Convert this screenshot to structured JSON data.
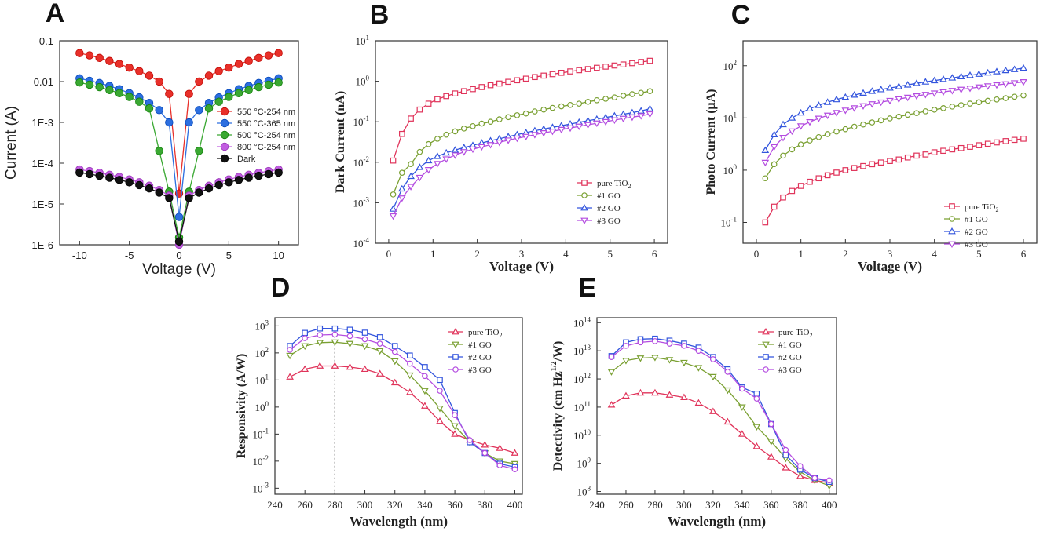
{
  "chart_data": [
    {
      "panel": "A",
      "type": "line",
      "xlabel": "Voltage (V)",
      "ylabel": "Current (A)",
      "xlim": [
        -12,
        12
      ],
      "ylim": [
        1e-06,
        0.1
      ],
      "yscale": "log",
      "xticks": [
        -10,
        -5,
        0,
        5,
        10
      ],
      "xtick_labels": [
        "-10",
        "-5",
        "0",
        "5",
        "10"
      ],
      "yticks": [
        1e-06,
        1e-05,
        0.0001,
        0.001,
        0.01,
        0.1
      ],
      "ytick_labels": [
        "1E-6",
        "1E-5",
        "1E-4",
        "1E-3",
        "0.01",
        "0.1"
      ],
      "legend_position": "center-right",
      "x": [
        -10,
        -9,
        -8,
        -7,
        -6,
        -5,
        -4,
        -3,
        -2,
        -1,
        0,
        1,
        2,
        3,
        4,
        5,
        6,
        7,
        8,
        9,
        10
      ],
      "series": [
        {
          "name": "550 °C-254 nm",
          "color": "#e8302a",
          "marker": "circle",
          "values": [
            0.05,
            0.044,
            0.038,
            0.032,
            0.027,
            0.022,
            0.018,
            0.014,
            0.01,
            0.005,
            1.8e-05,
            0.005,
            0.01,
            0.014,
            0.018,
            0.022,
            0.027,
            0.032,
            0.038,
            0.044,
            0.05
          ]
        },
        {
          "name": "550 °C-365 nm",
          "color": "#2d6fe0",
          "marker": "circle",
          "values": [
            0.012,
            0.0105,
            0.0092,
            0.0078,
            0.0065,
            0.0052,
            0.0041,
            0.003,
            0.002,
            0.001,
            4.8e-06,
            0.001,
            0.002,
            0.003,
            0.0041,
            0.0052,
            0.0065,
            0.0078,
            0.0092,
            0.0105,
            0.012
          ]
        },
        {
          "name": "500 °C-254 nm",
          "color": "#3aa832",
          "marker": "circle",
          "values": [
            0.0095,
            0.0084,
            0.0073,
            0.0062,
            0.0052,
            0.0042,
            0.0032,
            0.0022,
            0.0002,
            2e-05,
            1.5e-06,
            2e-05,
            0.0002,
            0.0022,
            0.0032,
            0.0042,
            0.0052,
            0.0062,
            0.0073,
            0.0084,
            0.0095
          ]
        },
        {
          "name": "800 °C-254 nm",
          "color": "#c15de0",
          "marker": "circle",
          "values": [
            7e-05,
            6.4e-05,
            5.8e-05,
            5.2e-05,
            4.6e-05,
            4e-05,
            3.4e-05,
            2.8e-05,
            2.2e-05,
            1.6e-05,
            1e-06,
            1.6e-05,
            2.2e-05,
            2.8e-05,
            3.4e-05,
            4e-05,
            4.6e-05,
            5.2e-05,
            5.8e-05,
            6.4e-05,
            7e-05
          ]
        },
        {
          "name": "Dark",
          "color": "#111111",
          "marker": "circle",
          "values": [
            5.9e-05,
            5.4e-05,
            4.9e-05,
            4.4e-05,
            3.9e-05,
            3.4e-05,
            2.9e-05,
            2.4e-05,
            1.9e-05,
            1.4e-05,
            1.2e-06,
            1.4e-05,
            1.9e-05,
            2.4e-05,
            2.9e-05,
            3.4e-05,
            3.9e-05,
            4.4e-05,
            4.9e-05,
            5.4e-05,
            5.9e-05
          ]
        }
      ]
    },
    {
      "panel": "B",
      "type": "line",
      "xlabel": "Voltage (V)",
      "ylabel": "Dark Current (nA)",
      "xlim": [
        -0.3,
        6.3
      ],
      "ylim": [
        0.0001,
        10
      ],
      "yscale": "log",
      "xticks": [
        0,
        1,
        2,
        3,
        4,
        5,
        6
      ],
      "xtick_labels": [
        "0",
        "1",
        "2",
        "3",
        "4",
        "5",
        "6"
      ],
      "yticks": [
        0.0001,
        0.001,
        0.01,
        0.1,
        1,
        10
      ],
      "ytick_labels": [
        "10",
        "10",
        "10",
        "10",
        "10",
        "10"
      ],
      "ytick_exponents": [
        "-4",
        "-3",
        "-2",
        "-1",
        "0",
        "1"
      ],
      "legend_position": "bottom-right",
      "x": [
        0.1,
        0.3,
        0.5,
        0.7,
        0.9,
        1.1,
        1.3,
        1.5,
        1.7,
        1.9,
        2.1,
        2.3,
        2.5,
        2.7,
        2.9,
        3.1,
        3.3,
        3.5,
        3.7,
        3.9,
        4.1,
        4.3,
        4.5,
        4.7,
        4.9,
        5.1,
        5.3,
        5.5,
        5.7,
        5.9
      ],
      "series": [
        {
          "name": "pure TiO",
          "name_sub": "2",
          "color": "#e0335a",
          "marker": "square",
          "values": [
            0.011,
            0.05,
            0.12,
            0.2,
            0.28,
            0.36,
            0.43,
            0.5,
            0.57,
            0.64,
            0.72,
            0.8,
            0.88,
            0.97,
            1.06,
            1.16,
            1.27,
            1.38,
            1.5,
            1.62,
            1.75,
            1.88,
            2.0,
            2.15,
            2.3,
            2.45,
            2.6,
            2.8,
            3.0,
            3.2
          ]
        },
        {
          "name": "#1 GO",
          "color": "#7aa032",
          "marker": "circle",
          "values": [
            0.0016,
            0.0055,
            0.009,
            0.018,
            0.028,
            0.038,
            0.048,
            0.058,
            0.068,
            0.078,
            0.09,
            0.1,
            0.115,
            0.13,
            0.145,
            0.16,
            0.18,
            0.2,
            0.22,
            0.24,
            0.26,
            0.28,
            0.31,
            0.34,
            0.37,
            0.4,
            0.44,
            0.48,
            0.52,
            0.57
          ]
        },
        {
          "name": "#2 GO",
          "color": "#3355dd",
          "marker": "triangle-up",
          "values": [
            0.0007,
            0.0022,
            0.0045,
            0.0075,
            0.011,
            0.014,
            0.017,
            0.02,
            0.023,
            0.026,
            0.03,
            0.034,
            0.038,
            0.043,
            0.048,
            0.054,
            0.06,
            0.066,
            0.073,
            0.08,
            0.088,
            0.097,
            0.106,
            0.116,
            0.127,
            0.14,
            0.153,
            0.168,
            0.185,
            0.21
          ]
        },
        {
          "name": "#3 GO",
          "color": "#b44ce0",
          "marker": "triangle-down",
          "values": [
            0.00047,
            0.0013,
            0.0025,
            0.0042,
            0.0065,
            0.0092,
            0.012,
            0.015,
            0.018,
            0.021,
            0.024,
            0.027,
            0.031,
            0.035,
            0.039,
            0.043,
            0.048,
            0.053,
            0.058,
            0.064,
            0.07,
            0.077,
            0.084,
            0.092,
            0.1,
            0.11,
            0.12,
            0.13,
            0.14,
            0.155
          ]
        }
      ]
    },
    {
      "panel": "C",
      "type": "line",
      "xlabel": "Voltage (V)",
      "ylabel": "Photo Current (μA)",
      "xlim": [
        -0.3,
        6.3
      ],
      "ylim": [
        0.04,
        300
      ],
      "yscale": "log",
      "xticks": [
        0,
        1,
        2,
        3,
        4,
        5,
        6
      ],
      "xtick_labels": [
        "0",
        "1",
        "2",
        "3",
        "4",
        "5",
        "6"
      ],
      "yticks": [
        0.1,
        1,
        10,
        100
      ],
      "ytick_labels": [
        "10",
        "10",
        "10",
        "10"
      ],
      "ytick_exponents": [
        "-1",
        "0",
        "1",
        "2"
      ],
      "legend_position": "bottom-right",
      "x": [
        0.2,
        0.4,
        0.6,
        0.8,
        1.0,
        1.2,
        1.4,
        1.6,
        1.8,
        2.0,
        2.2,
        2.4,
        2.6,
        2.8,
        3.0,
        3.2,
        3.4,
        3.6,
        3.8,
        4.0,
        4.2,
        4.4,
        4.6,
        4.8,
        5.0,
        5.2,
        5.4,
        5.6,
        5.8,
        6.0
      ],
      "series": [
        {
          "name": "pure TiO",
          "name_sub": "2",
          "color": "#e0335a",
          "marker": "square",
          "values": [
            0.1,
            0.2,
            0.3,
            0.4,
            0.5,
            0.6,
            0.7,
            0.8,
            0.9,
            1.0,
            1.1,
            1.2,
            1.3,
            1.4,
            1.5,
            1.6,
            1.75,
            1.9,
            2.0,
            2.2,
            2.35,
            2.5,
            2.65,
            2.8,
            3.0,
            3.2,
            3.4,
            3.6,
            3.8,
            4.0
          ]
        },
        {
          "name": "#1 GO",
          "color": "#7aa032",
          "marker": "circle",
          "values": [
            0.7,
            1.3,
            1.9,
            2.5,
            3.1,
            3.7,
            4.3,
            4.9,
            5.5,
            6.1,
            6.8,
            7.5,
            8.2,
            9.0,
            9.8,
            10.6,
            11.5,
            12.4,
            13.4,
            14.4,
            15.4,
            16.5,
            17.6,
            18.8,
            20.0,
            21.3,
            22.6,
            24.0,
            25.5,
            27.0
          ]
        },
        {
          "name": "#2 GO",
          "color": "#3355dd",
          "marker": "triangle-up",
          "values": [
            2.4,
            4.8,
            7.5,
            10.0,
            12.5,
            15.0,
            17.5,
            20.0,
            22.5,
            25.0,
            27.5,
            30.0,
            32.5,
            35.0,
            37.5,
            40.0,
            43.0,
            46.0,
            49.0,
            52.0,
            55.0,
            58.5,
            62.0,
            65.5,
            69.0,
            73.0,
            77.0,
            81.0,
            85.0,
            90.0
          ]
        },
        {
          "name": "#3 GO",
          "color": "#b44ce0",
          "marker": "triangle-down",
          "values": [
            1.4,
            2.8,
            4.2,
            5.6,
            7.0,
            8.4,
            9.8,
            11.2,
            12.6,
            14.0,
            15.5,
            17.0,
            18.5,
            20.0,
            21.5,
            23.0,
            24.7,
            26.4,
            28.1,
            29.8,
            31.5,
            33.3,
            35.1,
            37.0,
            38.9,
            40.8,
            42.8,
            44.8,
            46.8,
            49.0
          ]
        }
      ]
    },
    {
      "panel": "D",
      "type": "line",
      "xlabel": "Wavelength (nm)",
      "ylabel": "Responsivity (A/W)",
      "xlim": [
        240,
        405
      ],
      "ylim": [
        0.0006,
        2000
      ],
      "yscale": "log",
      "xticks": [
        240,
        260,
        280,
        300,
        320,
        340,
        360,
        380,
        400
      ],
      "xtick_labels": [
        "240",
        "260",
        "280",
        "300",
        "320",
        "340",
        "360",
        "380",
        "400"
      ],
      "yticks": [
        0.001,
        0.01,
        0.1,
        1,
        10,
        100,
        1000
      ],
      "ytick_labels": [
        "10",
        "10",
        "10",
        "10",
        "10",
        "10",
        "10"
      ],
      "ytick_exponents": [
        "-3",
        "-2",
        "-1",
        "0",
        "1",
        "2",
        "3"
      ],
      "reference_line_x": 280,
      "legend_position": "top-right",
      "x": [
        250,
        260,
        270,
        280,
        290,
        300,
        310,
        320,
        330,
        340,
        350,
        360,
        370,
        380,
        390,
        400
      ],
      "series": [
        {
          "name": "pure TiO",
          "name_sub": "2",
          "color": "#e0335a",
          "marker": "triangle-up",
          "values": [
            13,
            25,
            33,
            33,
            30,
            25,
            17,
            8,
            3.5,
            1.1,
            0.3,
            0.1,
            0.06,
            0.04,
            0.03,
            0.02
          ]
        },
        {
          "name": "#1 GO",
          "color": "#7aa032",
          "marker": "triangle-down",
          "values": [
            80,
            180,
            240,
            250,
            220,
            180,
            120,
            50,
            15,
            4,
            0.9,
            0.2,
            0.05,
            0.02,
            0.01,
            0.008
          ]
        },
        {
          "name": "#2 GO",
          "color": "#3355dd",
          "marker": "square",
          "values": [
            180,
            550,
            800,
            800,
            720,
            560,
            380,
            180,
            80,
            30,
            10,
            0.6,
            0.05,
            0.02,
            0.008,
            0.006
          ]
        },
        {
          "name": "#3 GO",
          "color": "#b44ce0",
          "marker": "circle",
          "values": [
            130,
            350,
            460,
            480,
            420,
            320,
            220,
            110,
            40,
            14,
            4,
            0.5,
            0.06,
            0.02,
            0.007,
            0.005
          ]
        }
      ]
    },
    {
      "panel": "E",
      "type": "line",
      "xlabel": "Wavelength (nm)",
      "ylabel": "Detectivity (cm Hz",
      "ylabel_sup": "1/2",
      "ylabel_end": "/W)",
      "xlim": [
        240,
        405
      ],
      "ylim": [
        80000000.0,
        150000000000000.0
      ],
      "yscale": "log",
      "xticks": [
        240,
        260,
        280,
        300,
        320,
        340,
        360,
        380,
        400
      ],
      "xtick_labels": [
        "240",
        "260",
        "280",
        "300",
        "320",
        "340",
        "360",
        "380",
        "400"
      ],
      "yticks": [
        100000000.0,
        1000000000.0,
        10000000000.0,
        100000000000.0,
        1000000000000.0,
        10000000000000.0,
        100000000000000.0
      ],
      "ytick_labels": [
        "10",
        "10",
        "10",
        "10",
        "10",
        "10",
        "10"
      ],
      "ytick_exponents": [
        "8",
        "9",
        "10",
        "11",
        "12",
        "13",
        "14"
      ],
      "legend_position": "top-right",
      "x": [
        250,
        260,
        270,
        280,
        290,
        300,
        310,
        320,
        330,
        340,
        350,
        360,
        370,
        380,
        390,
        400
      ],
      "series": [
        {
          "name": "pure TiO",
          "name_sub": "2",
          "color": "#e0335a",
          "marker": "triangle-up",
          "values": [
            120000000000.0,
            250000000000.0,
            320000000000.0,
            320000000000.0,
            270000000000.0,
            220000000000.0,
            140000000000.0,
            70000000000.0,
            30000000000.0,
            11000000000.0,
            4000000000.0,
            1700000000.0,
            700000000.0,
            350000000.0,
            250000000.0,
            200000000.0
          ]
        },
        {
          "name": "#1 GO",
          "color": "#7aa032",
          "marker": "triangle-down",
          "values": [
            1800000000000.0,
            4500000000000.0,
            5500000000000.0,
            5800000000000.0,
            4800000000000.0,
            3800000000000.0,
            2500000000000.0,
            1200000000000.0,
            400000000000.0,
            100000000000.0,
            20000000000.0,
            6000000000.0,
            1500000000.0,
            500000000.0,
            250000000.0,
            160000000.0
          ]
        },
        {
          "name": "#2 GO",
          "color": "#3355dd",
          "marker": "square",
          "values": [
            6500000000000.0,
            20000000000000.0,
            26000000000000.0,
            27000000000000.0,
            23000000000000.0,
            18000000000000.0,
            13000000000000.0,
            6000000000000.0,
            2200000000000.0,
            500000000000.0,
            300000000000.0,
            25000000000.0,
            2000000000.0,
            600000000.0,
            300000000.0,
            220000000.0
          ]
        },
        {
          "name": "#3 GO",
          "color": "#b44ce0",
          "marker": "circle",
          "values": [
            6000000000000.0,
            15000000000000.0,
            20000000000000.0,
            22000000000000.0,
            18000000000000.0,
            15000000000000.0,
            10000000000000.0,
            5000000000000.0,
            1800000000000.0,
            450000000000.0,
            200000000000.0,
            25000000000.0,
            3000000000.0,
            800000000.0,
            300000000.0,
            250000000.0
          ]
        }
      ]
    }
  ]
}
